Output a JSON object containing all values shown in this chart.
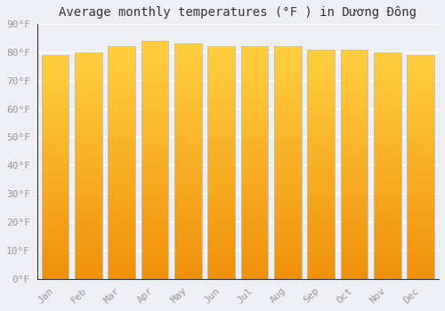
{
  "title": "Average monthly temperatures (°F ) in Dương Đông",
  "months": [
    "Jan",
    "Feb",
    "Mar",
    "Apr",
    "May",
    "Jun",
    "Jul",
    "Aug",
    "Sep",
    "Oct",
    "Nov",
    "Dec"
  ],
  "values": [
    79,
    80,
    82,
    84,
    83,
    82,
    82,
    82,
    81,
    81,
    80,
    79
  ],
  "bar_color_bottom": "#F0900A",
  "bar_color_top": "#FFCF40",
  "bar_edge_color": "#bbbbbb",
  "ylim": [
    0,
    90
  ],
  "yticks": [
    0,
    10,
    20,
    30,
    40,
    50,
    60,
    70,
    80,
    90
  ],
  "ytick_labels": [
    "0°F",
    "10°F",
    "20°F",
    "30°F",
    "40°F",
    "50°F",
    "60°F",
    "70°F",
    "80°F",
    "90°F"
  ],
  "bg_color": "#eeeef5",
  "grid_color": "#ffffff",
  "title_fontsize": 10,
  "tick_fontsize": 8,
  "tick_color": "#999999",
  "title_color": "#333333",
  "bar_width": 0.82
}
